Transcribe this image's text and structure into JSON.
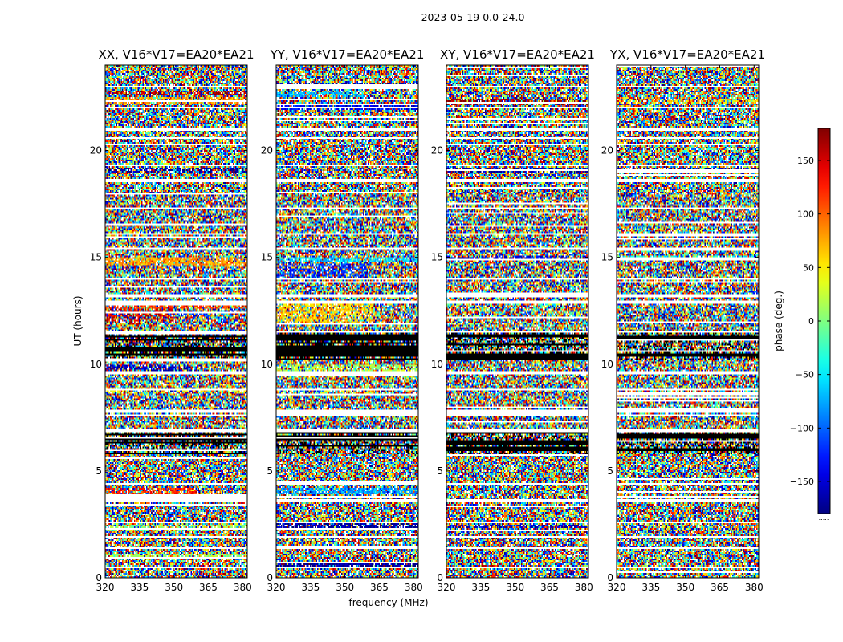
{
  "figure": {
    "suptitle": "2023-05-19 0.0-24.0",
    "colorbar_footer": "....."
  },
  "chart_data": {
    "type": "heatmap",
    "description_of_values": "phase per (frequency, time) cell; rendered as a noisy waterfall",
    "xlabel": "frequency (MHz)",
    "ylabel": "UT (hours)",
    "xlim": [
      320,
      382
    ],
    "ylim": [
      0,
      24
    ],
    "xticks": [
      320,
      335,
      350,
      365,
      380
    ],
    "yticks": [
      0,
      5,
      10,
      15,
      20
    ],
    "colorbar": {
      "label": "phase (deg.)",
      "range": [
        -180,
        180
      ],
      "ticks": [
        150,
        100,
        50,
        0,
        -50,
        -100,
        -150
      ],
      "tick_labels": [
        "150",
        "100",
        "50",
        "0",
        "−50",
        "−100",
        "−150"
      ],
      "colormap": "jet"
    },
    "blank_rows_hours": [
      0.5,
      1.4,
      1.9,
      2.6,
      3.6,
      4.4,
      6.9,
      7.6,
      7.8,
      8.8,
      9.6,
      11.5,
      12.9,
      13.2,
      14.0,
      15.4,
      16.1,
      17.3,
      18.6,
      19.3,
      20.6,
      21.0,
      22.0,
      23.0
    ],
    "dark_band_hours": [
      [
        5.8,
        7.0
      ],
      [
        10.2,
        11.5
      ]
    ],
    "panels": [
      {
        "title": "XX, V16*V17=EA20*EA21",
        "features": [
          {
            "y": [
              0.9,
              1.1
            ],
            "phase": 10,
            "freq": [
              320,
              382
            ],
            "strength": 0.6
          },
          {
            "y": [
              2.2,
              2.5
            ],
            "phase": 10,
            "freq": [
              320,
              382
            ],
            "strength": 0.5
          },
          {
            "y": [
              3.9,
              4.2
            ],
            "phase": 120,
            "freq": [
              320,
              360
            ],
            "strength": 0.6
          },
          {
            "y": [
              8.6,
              8.9
            ],
            "phase": 40,
            "freq": [
              320,
              382
            ],
            "strength": 0.3
          },
          {
            "y": [
              9.6,
              10.0
            ],
            "phase": -160,
            "freq": [
              320,
              360
            ],
            "strength": 0.5
          },
          {
            "y": [
              12.0,
              12.6
            ],
            "phase": 150,
            "freq": [
              320,
              350
            ],
            "strength": 0.5
          },
          {
            "y": [
              12.6,
              12.9
            ],
            "phase": 110,
            "freq": [
              320,
              382
            ],
            "strength": 0.6
          },
          {
            "y": [
              14.6,
              15.0
            ],
            "phase": 80,
            "freq": [
              320,
              382
            ],
            "strength": 0.7
          },
          {
            "y": [
              19.0,
              19.2
            ],
            "phase": -170,
            "freq": [
              320,
              382
            ],
            "strength": 0.5
          },
          {
            "y": [
              22.2,
              22.5
            ],
            "phase": 80,
            "freq": [
              320,
              382
            ],
            "strength": 0.6
          },
          {
            "y": [
              22.6,
              22.8
            ],
            "phase": 160,
            "freq": [
              320,
              382
            ],
            "strength": 0.5
          }
        ]
      },
      {
        "title": "YY, V16*V17=EA20*EA21",
        "features": [
          {
            "y": [
              0.5,
              0.7
            ],
            "phase": -170,
            "freq": [
              320,
              382
            ],
            "strength": 0.8
          },
          {
            "y": [
              2.3,
              2.6
            ],
            "phase": -170,
            "freq": [
              320,
              382
            ],
            "strength": 0.7
          },
          {
            "y": [
              3.9,
              4.2
            ],
            "phase": -80,
            "freq": [
              320,
              382
            ],
            "strength": 0.7
          },
          {
            "y": [
              9.5,
              10.0
            ],
            "phase": 20,
            "freq": [
              320,
              382
            ],
            "strength": 0.5
          },
          {
            "y": [
              11.9,
              12.9
            ],
            "phase": 60,
            "freq": [
              320,
              362
            ],
            "strength": 0.6
          },
          {
            "y": [
              14.0,
              14.7
            ],
            "phase": -120,
            "freq": [
              320,
              360
            ],
            "strength": 0.5
          },
          {
            "y": [
              14.8,
              15.0
            ],
            "phase": -60,
            "freq": [
              320,
              382
            ],
            "strength": 0.6
          },
          {
            "y": [
              21.9,
              22.2
            ],
            "phase": -140,
            "freq": [
              320,
              382
            ],
            "strength": 0.7
          },
          {
            "y": [
              22.5,
              22.8
            ],
            "phase": -70,
            "freq": [
              320,
              360
            ],
            "strength": 0.6
          },
          {
            "y": [
              23.0,
              23.2
            ],
            "phase": -170,
            "freq": [
              320,
              382
            ],
            "strength": 0.7
          }
        ]
      },
      {
        "title": "XY, V16*V17=EA20*EA21",
        "features": [
          {
            "y": [
              2.3,
              2.5
            ],
            "phase": -160,
            "freq": [
              320,
              382
            ],
            "strength": 0.4
          },
          {
            "y": [
              12.8,
              13.0
            ],
            "phase": -160,
            "freq": [
              320,
              382
            ],
            "strength": 0.6
          },
          {
            "y": [
              14.9,
              15.1
            ],
            "phase": -150,
            "freq": [
              320,
              382
            ],
            "strength": 0.5
          },
          {
            "y": [
              19.0,
              19.2
            ],
            "phase": -170,
            "freq": [
              320,
              382
            ],
            "strength": 0.6
          },
          {
            "y": [
              22.1,
              22.4
            ],
            "phase": 170,
            "freq": [
              320,
              382
            ],
            "strength": 0.5
          }
        ]
      },
      {
        "title": "YX, V16*V17=EA20*EA21",
        "features": [
          {
            "y": [
              12.8,
              13.0
            ],
            "phase": 0,
            "freq": [
              320,
              382
            ],
            "strength": 0.4
          },
          {
            "y": [
              14.9,
              15.1
            ],
            "phase": -40,
            "freq": [
              320,
              382
            ],
            "strength": 0.4
          },
          {
            "y": [
              19.0,
              19.2
            ],
            "phase": -170,
            "freq": [
              320,
              382
            ],
            "strength": 0.5
          },
          {
            "y": [
              22.2,
              22.4
            ],
            "phase": 60,
            "freq": [
              320,
              382
            ],
            "strength": 0.4
          }
        ]
      }
    ]
  }
}
